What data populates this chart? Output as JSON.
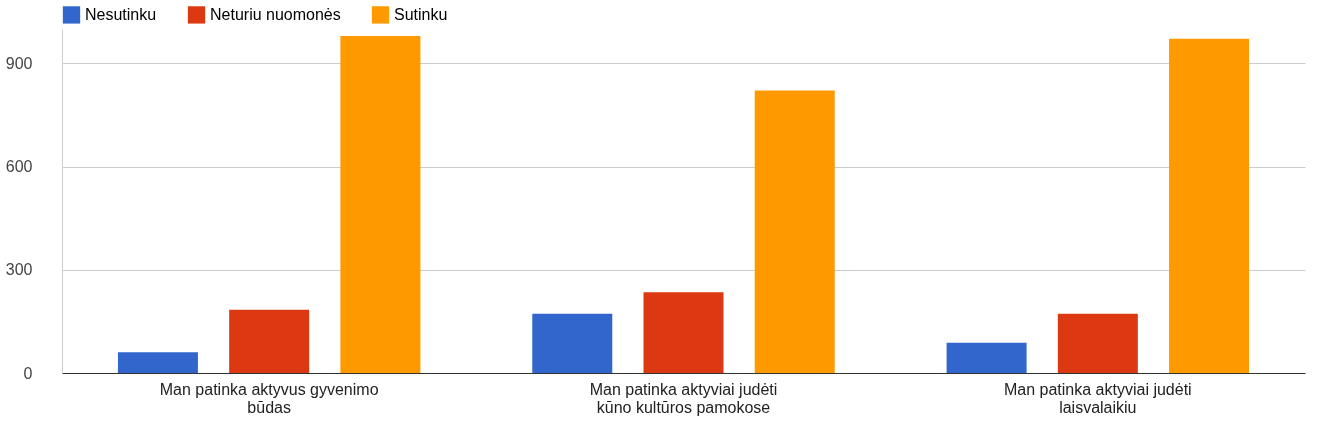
{
  "chart_data": {
    "type": "bar",
    "categories": [
      "Man patinka aktyvus gyvenimo būdas",
      "Man patinka aktyviai judėti kūno kultūros pamokose",
      "Man patinka aktyviai judėti laisvalaikiu"
    ],
    "series": [
      {
        "name": "Nesutinku",
        "color": "#3366cc",
        "values": [
          60,
          172,
          88
        ]
      },
      {
        "name": "Neturiu nuomonės",
        "color": "#dc3912",
        "values": [
          184,
          235,
          172
        ]
      },
      {
        "name": "Sutinku",
        "color": "#ff9900",
        "values": [
          980,
          821,
          972
        ]
      }
    ],
    "ylim": [
      0,
      1000
    ],
    "yticks": [
      0,
      300,
      600,
      900
    ],
    "grid": "y",
    "legend": "top left"
  }
}
